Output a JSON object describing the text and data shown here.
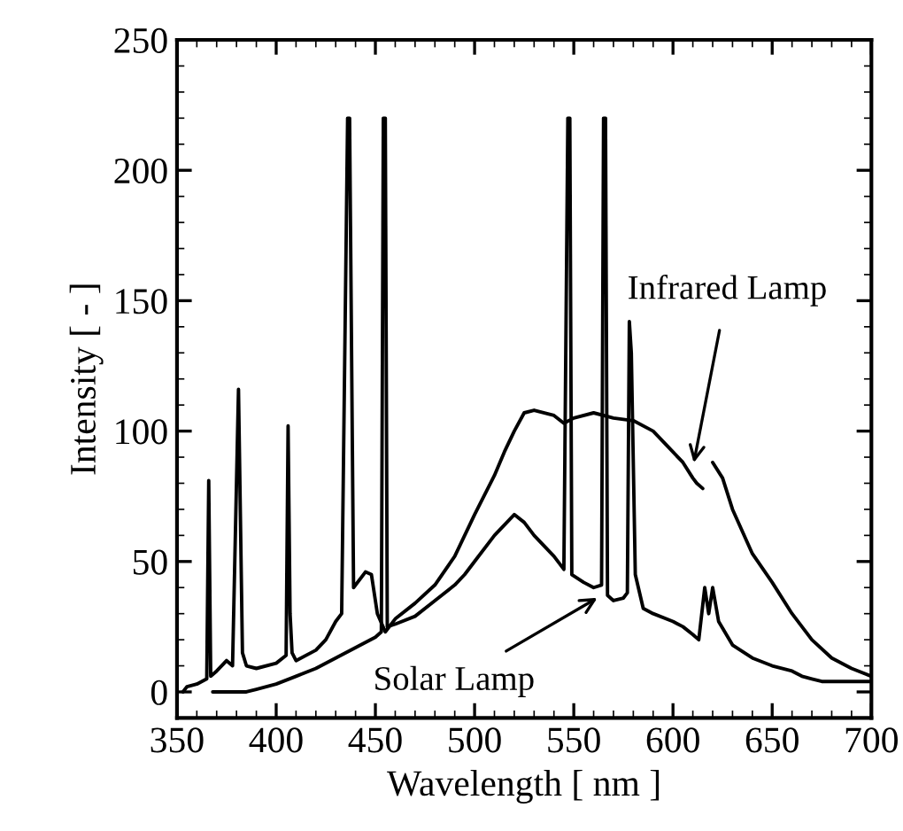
{
  "chart_data": {
    "type": "line",
    "xlabel": "Wavelength [ nm ]",
    "ylabel": "Intensity [ - ]",
    "xlim": [
      350,
      700
    ],
    "ylim": [
      -10,
      250
    ],
    "xticks": [
      350,
      400,
      450,
      500,
      550,
      600,
      650,
      700
    ],
    "yticks": [
      0,
      50,
      100,
      150,
      200,
      250
    ],
    "grid": false,
    "legend": false,
    "marker": "none",
    "line_style": "solid",
    "series": [
      {
        "color": "#000000",
        "x": [
          353,
          355,
          360,
          365,
          366,
          367,
          370,
          375,
          378,
          381,
          383,
          385,
          390,
          400,
          405,
          406,
          407,
          408,
          410,
          420,
          425,
          430,
          433,
          436,
          437,
          439,
          445,
          448,
          451,
          455,
          460,
          470,
          480,
          490,
          495,
          500,
          510,
          515,
          520,
          525,
          530,
          540,
          545,
          550,
          560,
          570,
          580,
          590,
          600,
          605,
          610,
          612,
          615,
          618,
          620,
          625,
          630,
          640,
          650,
          660,
          670,
          680,
          690,
          700
        ],
        "values": [
          0,
          2,
          3,
          5,
          81,
          6,
          8,
          12,
          10,
          116,
          15,
          10,
          9,
          11,
          14,
          102,
          30,
          15,
          12,
          16,
          20,
          27,
          30,
          220,
          220,
          40,
          46,
          45,
          30,
          23,
          28,
          34,
          41,
          52,
          60,
          68,
          83,
          92,
          100,
          107,
          108,
          106,
          103,
          105,
          107,
          105,
          104,
          100,
          92,
          88,
          82,
          80,
          78,
          null,
          88,
          82,
          70,
          53,
          42,
          30,
          20,
          13,
          9,
          6
        ]
      },
      {
        "color": "#000000",
        "x": [
          368,
          375,
          385,
          390,
          400,
          410,
          420,
          430,
          440,
          450,
          453,
          454,
          455,
          456,
          460,
          470,
          480,
          490,
          495,
          500,
          510,
          515,
          520,
          525,
          530,
          540,
          545,
          547,
          548,
          549,
          555,
          560,
          564,
          565,
          566,
          567,
          570,
          575,
          577,
          578,
          579,
          581,
          585,
          590,
          600,
          605,
          610,
          613,
          616,
          618,
          620,
          623,
          630,
          640,
          650,
          660,
          665,
          670,
          675,
          680,
          700
        ],
        "values": [
          0,
          0,
          0,
          1,
          3,
          6,
          9,
          13,
          17,
          21,
          23,
          220,
          220,
          25,
          26,
          29,
          35,
          41,
          45,
          50,
          60,
          64,
          68,
          65,
          60,
          52,
          47,
          220,
          220,
          45,
          42,
          40,
          41,
          220,
          220,
          37,
          35,
          36,
          38,
          142,
          130,
          45,
          32,
          30,
          27,
          25,
          22,
          20,
          40,
          30,
          40,
          27,
          18,
          13,
          10,
          8,
          6,
          5,
          4,
          4,
          4
        ]
      }
    ],
    "annotations": [
      {
        "text": "Infrared Lamp",
        "x": 610,
        "y": 86
      },
      {
        "text": "Solar Lamp",
        "x": 564,
        "y": 37
      }
    ]
  }
}
